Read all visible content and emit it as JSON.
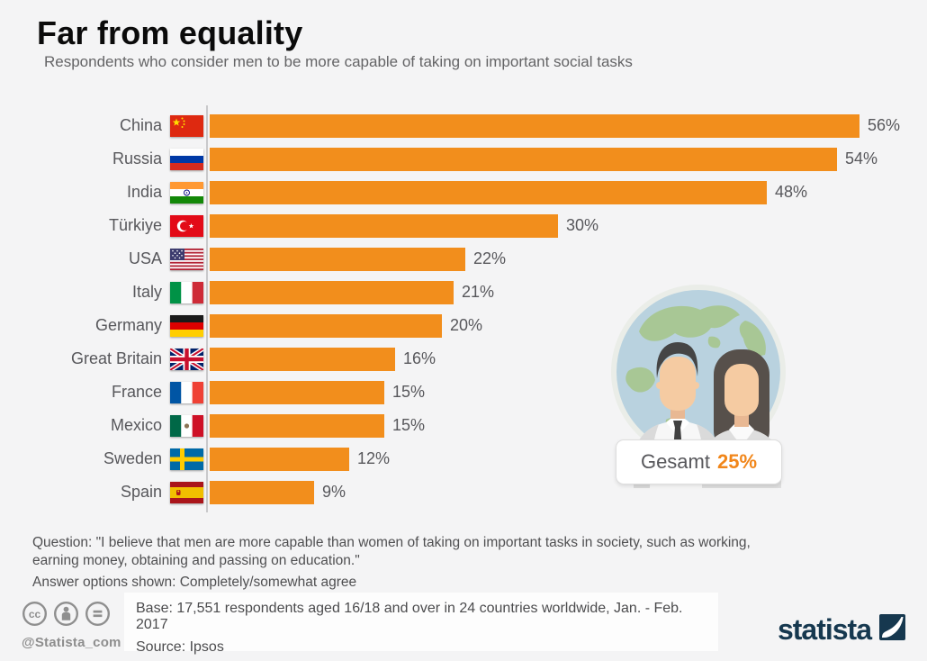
{
  "header": {
    "title": "Far from equality",
    "subtitle": "Respondents who consider men to be more capable of taking on important social tasks"
  },
  "chart_data": {
    "type": "bar",
    "orientation": "horizontal",
    "title": "Far from equality",
    "unit": "percent",
    "xlim": [
      0,
      56
    ],
    "bar_color": "#f28e1c",
    "grid": false,
    "categories": [
      "China",
      "Russia",
      "India",
      "Türkiye",
      "USA",
      "Italy",
      "Germany",
      "Great Britain",
      "France",
      "Mexico",
      "Sweden",
      "Spain"
    ],
    "values": [
      56,
      54,
      48,
      30,
      22,
      21,
      20,
      16,
      15,
      15,
      12,
      9
    ],
    "value_labels": [
      "56%",
      "54%",
      "48%",
      "30%",
      "22%",
      "21%",
      "20%",
      "16%",
      "15%",
      "15%",
      "12%",
      "9%"
    ],
    "overall": {
      "label": "Gesamt",
      "value": 25,
      "value_label": "25%"
    }
  },
  "overlay": {
    "label": "Gesamt",
    "value": "25%"
  },
  "footnote": {
    "question": "Question: \"I believe that men are more capable than women of taking on important tasks in society, such as working, earning money, obtaining and passing on education.\"",
    "answer_options": "Answer options shown: Completely/somewhat agree"
  },
  "footer": {
    "handle": "@Statista_com",
    "base": "Base: 17,551 respondents aged 16/18 and over in 24 countries worldwide, Jan. - Feb. 2017",
    "source": "Source: Ipsos",
    "brand": "statista",
    "license_icons": [
      "cc-icon",
      "attribution-icon",
      "equal-icon"
    ]
  },
  "colors": {
    "bar_orange": "#f28e1c",
    "badge_accent": "#f1861a",
    "brand_navy": "#16384f",
    "text_gray": "#57575b",
    "background": "#f4f4f5"
  }
}
